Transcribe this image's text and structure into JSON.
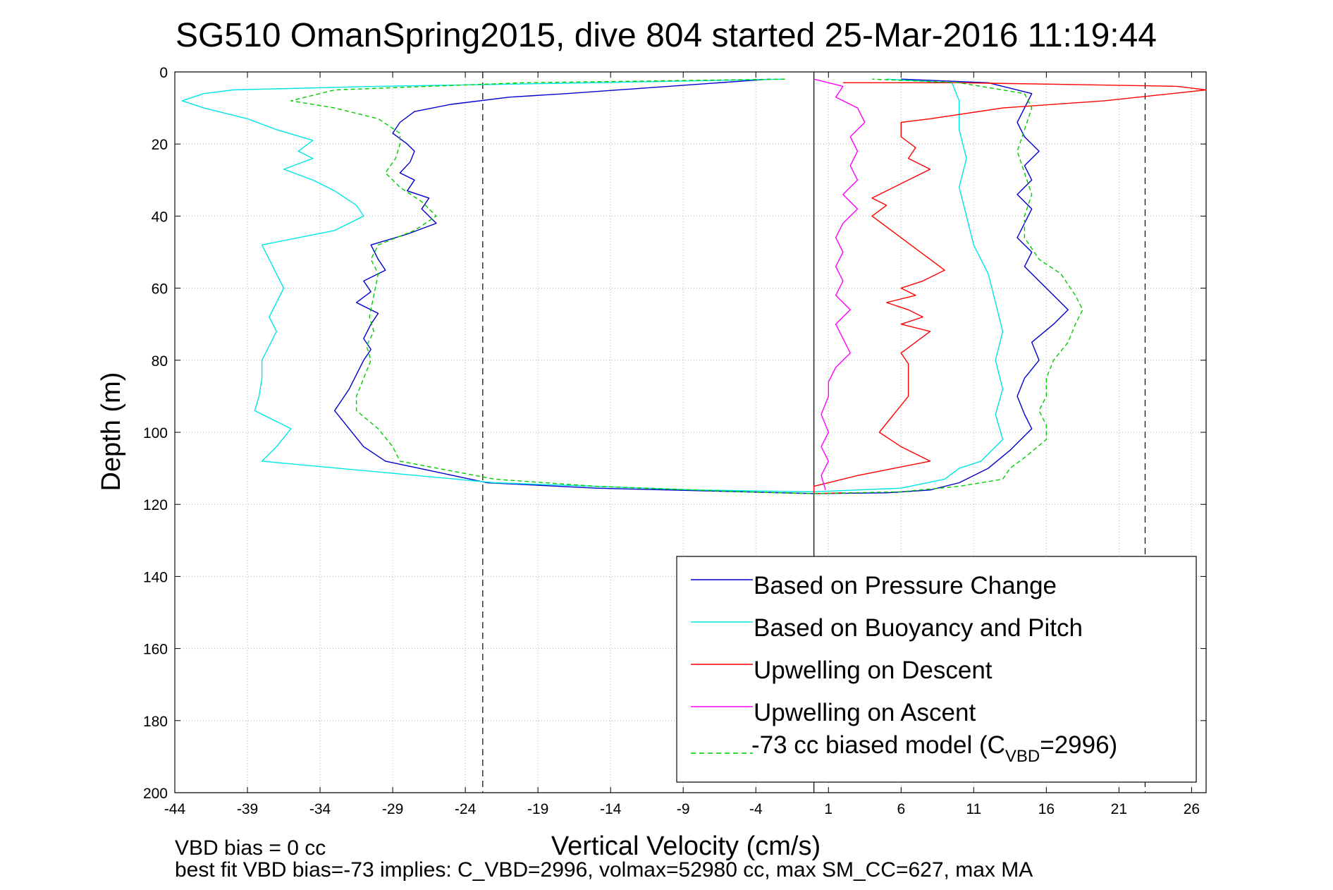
{
  "chart_data": {
    "type": "line",
    "title": "SG510 OmanSpring2015, dive 804 started 25-Mar-2016 11:19:44",
    "xlabel": "Vertical Velocity (cm/s)",
    "ylabel": "Depth (m)",
    "xlim": [
      -44,
      27
    ],
    "ylim": [
      0,
      200
    ],
    "y_reversed": true,
    "grid": true,
    "xticks": [
      "-44",
      "-39",
      "-34",
      "-29",
      "-24",
      "-19",
      "-14",
      "-9",
      "-4",
      "1",
      "6",
      "11",
      "16",
      "21",
      "26"
    ],
    "yticks": [
      "0",
      "20",
      "40",
      "60",
      "80",
      "100",
      "120",
      "140",
      "160",
      "180",
      "200"
    ],
    "reference_lines": {
      "solid_vertical_x": 0,
      "dashed_vertical_x": [
        -22.8,
        22.8
      ]
    },
    "legend_position": "lower-right",
    "legend": [
      "Based on Pressure Change",
      "Based on Buoyancy and Pitch",
      "Upwelling on Descent",
      "Upwelling on Ascent",
      "-73 cc biased model (C"
    ],
    "legend_sub": "VBD",
    "legend_tail": "=2996)",
    "colors": {
      "pressure": "#0000cc",
      "buoyancy": "#00e5e5",
      "descent": "#ff0000",
      "ascent": "#ff00ff",
      "model": "#00cc00"
    },
    "series": [
      {
        "name": "Based on Pressure Change",
        "points": [
          [
            -3,
            2
          ],
          [
            -10,
            4
          ],
          [
            -17,
            6
          ],
          [
            -21,
            7
          ],
          [
            -25,
            9
          ],
          [
            -27.5,
            11
          ],
          [
            -28.5,
            14
          ],
          [
            -29,
            17
          ],
          [
            -28,
            20
          ],
          [
            -27.5,
            22
          ],
          [
            -27.8,
            25
          ],
          [
            -28.5,
            28
          ],
          [
            -27.5,
            30
          ],
          [
            -28,
            33
          ],
          [
            -26.5,
            35
          ],
          [
            -27,
            38
          ],
          [
            -26,
            42
          ],
          [
            -28,
            45
          ],
          [
            -30.5,
            48
          ],
          [
            -30,
            52
          ],
          [
            -29.5,
            55
          ],
          [
            -31,
            58
          ],
          [
            -30.5,
            61
          ],
          [
            -31.5,
            64
          ],
          [
            -30,
            67
          ],
          [
            -30.5,
            70
          ],
          [
            -31,
            74
          ],
          [
            -30.5,
            77
          ],
          [
            -31,
            80
          ],
          [
            -31.5,
            84
          ],
          [
            -32,
            88
          ],
          [
            -32.5,
            91
          ],
          [
            -33,
            94
          ],
          [
            -32,
            99
          ],
          [
            -31,
            104
          ],
          [
            -29.5,
            108
          ],
          [
            -26,
            111
          ],
          [
            -22.5,
            114
          ],
          [
            -15,
            115.5
          ],
          [
            -5,
            116.5
          ],
          [
            0,
            117
          ],
          [
            5,
            116.8
          ],
          [
            8,
            116
          ],
          [
            10,
            114
          ],
          [
            12,
            110
          ],
          [
            13.5,
            105
          ],
          [
            15,
            99
          ],
          [
            14.5,
            95
          ],
          [
            14,
            90
          ],
          [
            14.5,
            85
          ],
          [
            15.5,
            80
          ],
          [
            15,
            75
          ],
          [
            16.5,
            70
          ],
          [
            17.5,
            66
          ],
          [
            16.5,
            62
          ],
          [
            15.5,
            58
          ],
          [
            14.5,
            54
          ],
          [
            15,
            50
          ],
          [
            14,
            46
          ],
          [
            14.5,
            42
          ],
          [
            15,
            38
          ],
          [
            14,
            34
          ],
          [
            15,
            30
          ],
          [
            14.5,
            26
          ],
          [
            15.5,
            22
          ],
          [
            14.5,
            18
          ],
          [
            14,
            14
          ],
          [
            14.5,
            10
          ],
          [
            15,
            6
          ],
          [
            12,
            3
          ],
          [
            6,
            2
          ]
        ]
      },
      {
        "name": "Based on Buoyancy and Pitch",
        "points": [
          [
            -2,
            2
          ],
          [
            -15,
            3
          ],
          [
            -30,
            4
          ],
          [
            -40,
            5
          ],
          [
            -42,
            6
          ],
          [
            -43.5,
            8
          ],
          [
            -42,
            10
          ],
          [
            -39,
            13
          ],
          [
            -37,
            16
          ],
          [
            -34.5,
            19
          ],
          [
            -35.5,
            22
          ],
          [
            -34.5,
            24
          ],
          [
            -36.5,
            27
          ],
          [
            -34.5,
            30
          ],
          [
            -33,
            33
          ],
          [
            -31.5,
            37
          ],
          [
            -31,
            40
          ],
          [
            -33,
            44
          ],
          [
            -38,
            48
          ],
          [
            -37.5,
            52
          ],
          [
            -37,
            56
          ],
          [
            -36.5,
            60
          ],
          [
            -37,
            64
          ],
          [
            -37.5,
            68
          ],
          [
            -37,
            72
          ],
          [
            -37.5,
            76
          ],
          [
            -38,
            80
          ],
          [
            -38,
            85
          ],
          [
            -38.2,
            90
          ],
          [
            -38.5,
            94
          ],
          [
            -36,
            99
          ],
          [
            -37,
            104
          ],
          [
            -38,
            108
          ],
          [
            -22,
            114
          ],
          [
            -8,
            116
          ],
          [
            0,
            116.5
          ],
          [
            6,
            115.5
          ],
          [
            9,
            113
          ],
          [
            10,
            110
          ],
          [
            11.5,
            108
          ],
          [
            13,
            102
          ],
          [
            12.5,
            95
          ],
          [
            13,
            88
          ],
          [
            12.5,
            80
          ],
          [
            13,
            72
          ],
          [
            12.5,
            64
          ],
          [
            12,
            56
          ],
          [
            11,
            48
          ],
          [
            10.5,
            40
          ],
          [
            10,
            32
          ],
          [
            10.5,
            24
          ],
          [
            10,
            16
          ],
          [
            10,
            8
          ],
          [
            9.5,
            3
          ],
          [
            5,
            2
          ]
        ]
      },
      {
        "name": "Upwelling on Descent",
        "points": [
          [
            2,
            3
          ],
          [
            10,
            3
          ],
          [
            18,
            3.5
          ],
          [
            25,
            4
          ],
          [
            27,
            5
          ],
          [
            20,
            8
          ],
          [
            13,
            10
          ],
          [
            8,
            13
          ],
          [
            6,
            14
          ],
          [
            6,
            18
          ],
          [
            7,
            21
          ],
          [
            6.5,
            24
          ],
          [
            8,
            27
          ],
          [
            6.5,
            30
          ],
          [
            5,
            33
          ],
          [
            4,
            35
          ],
          [
            5,
            37
          ],
          [
            4,
            40
          ],
          [
            5,
            43
          ],
          [
            6,
            46
          ],
          [
            7,
            49
          ],
          [
            8,
            52
          ],
          [
            9,
            55
          ],
          [
            7.5,
            58
          ],
          [
            6,
            60
          ],
          [
            7,
            62
          ],
          [
            5,
            64
          ],
          [
            6.5,
            66
          ],
          [
            7.5,
            68
          ],
          [
            6,
            70
          ],
          [
            8,
            72
          ],
          [
            7,
            75
          ],
          [
            6,
            78
          ],
          [
            6.5,
            81
          ],
          [
            6.5,
            85
          ],
          [
            6.5,
            90
          ],
          [
            5.5,
            95
          ],
          [
            4.5,
            100
          ],
          [
            6,
            104
          ],
          [
            8,
            108
          ],
          [
            3,
            112
          ],
          [
            0,
            115
          ],
          [
            0,
            117
          ],
          [
            2,
            116.8
          ]
        ]
      },
      {
        "name": "Upwelling on Ascent",
        "points": [
          [
            0,
            2
          ],
          [
            2,
            4
          ],
          [
            1.5,
            7
          ],
          [
            3,
            10
          ],
          [
            3.5,
            14
          ],
          [
            2.5,
            18
          ],
          [
            3,
            22
          ],
          [
            2.5,
            26
          ],
          [
            3,
            30
          ],
          [
            2,
            34
          ],
          [
            3,
            38
          ],
          [
            2,
            42
          ],
          [
            1.5,
            46
          ],
          [
            2,
            50
          ],
          [
            1.5,
            54
          ],
          [
            2,
            58
          ],
          [
            1.5,
            62
          ],
          [
            2.5,
            66
          ],
          [
            1.5,
            70
          ],
          [
            2,
            74
          ],
          [
            2.5,
            78
          ],
          [
            1.5,
            82
          ],
          [
            1,
            86
          ],
          [
            1,
            90
          ],
          [
            0.5,
            95
          ],
          [
            1,
            100
          ],
          [
            0.5,
            104
          ],
          [
            1,
            108
          ],
          [
            0.5,
            112
          ],
          [
            0.8,
            116
          ]
        ]
      },
      {
        "name": "-73 cc biased model (C_VBD=2996)",
        "points": [
          [
            -2,
            2
          ],
          [
            -20,
            3
          ],
          [
            -33,
            5
          ],
          [
            -36,
            8
          ],
          [
            -33,
            10
          ],
          [
            -30,
            13
          ],
          [
            -28.5,
            17
          ],
          [
            -28.5,
            20
          ],
          [
            -28.8,
            24
          ],
          [
            -29.5,
            28
          ],
          [
            -28.5,
            32
          ],
          [
            -27,
            36
          ],
          [
            -26,
            40
          ],
          [
            -27.5,
            44
          ],
          [
            -30,
            48
          ],
          [
            -30.5,
            52
          ],
          [
            -30,
            56
          ],
          [
            -30.2,
            60
          ],
          [
            -30.4,
            64
          ],
          [
            -30.6,
            68
          ],
          [
            -30.3,
            72
          ],
          [
            -30.8,
            76
          ],
          [
            -30.5,
            80
          ],
          [
            -31,
            85
          ],
          [
            -31.5,
            90
          ],
          [
            -31.5,
            94
          ],
          [
            -30,
            99
          ],
          [
            -29,
            104
          ],
          [
            -28.5,
            108
          ],
          [
            -22,
            113
          ],
          [
            -15,
            115
          ],
          [
            -5,
            116.5
          ],
          [
            0,
            117
          ],
          [
            6,
            116.5
          ],
          [
            10,
            115
          ],
          [
            13,
            113
          ],
          [
            13.5,
            110
          ],
          [
            14.5,
            107
          ],
          [
            16,
            102
          ],
          [
            16,
            98
          ],
          [
            15.5,
            94
          ],
          [
            16,
            90
          ],
          [
            16,
            85
          ],
          [
            16.5,
            80
          ],
          [
            17.5,
            75
          ],
          [
            18,
            70
          ],
          [
            18.5,
            66
          ],
          [
            18,
            62
          ],
          [
            17,
            56
          ],
          [
            15.5,
            52
          ],
          [
            14.5,
            46
          ],
          [
            14.5,
            40
          ],
          [
            15,
            34
          ],
          [
            14.5,
            28
          ],
          [
            14,
            22
          ],
          [
            14.5,
            16
          ],
          [
            15,
            10
          ],
          [
            14.5,
            6
          ],
          [
            10,
            3
          ],
          [
            4,
            2
          ]
        ]
      }
    ]
  },
  "notes": {
    "line1": "VBD bias = 0 cc",
    "line2": "best fit VBD bias=-73 implies: C_VBD=2996, volmax=52980 cc, max SM_CC=627, max MA"
  }
}
